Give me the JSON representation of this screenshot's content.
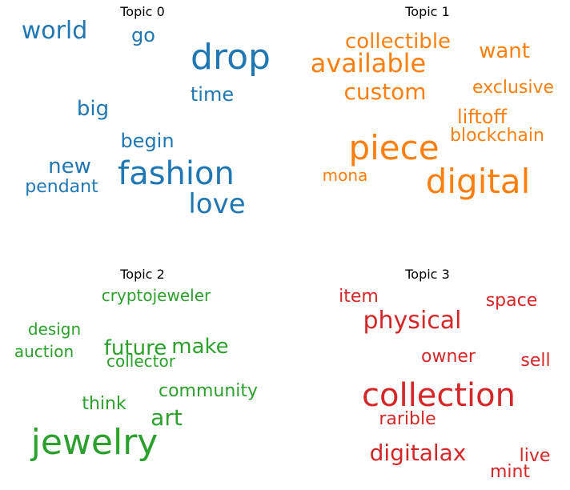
{
  "chart_data": [
    {
      "type": "wordcloud",
      "title": "Topic 0",
      "color": "#1f77b4",
      "words": [
        {
          "text": "drop",
          "weight": 1.0
        },
        {
          "text": "fashion",
          "weight": 0.92
        },
        {
          "text": "love",
          "weight": 0.82
        },
        {
          "text": "world",
          "weight": 0.72
        },
        {
          "text": "big",
          "weight": 0.64
        },
        {
          "text": "new",
          "weight": 0.62
        },
        {
          "text": "go",
          "weight": 0.58
        },
        {
          "text": "time",
          "weight": 0.58
        },
        {
          "text": "begin",
          "weight": 0.58
        },
        {
          "text": "pendant",
          "weight": 0.54
        }
      ]
    },
    {
      "type": "wordcloud",
      "title": "Topic 1",
      "color": "#ff7f0e",
      "words": [
        {
          "text": "digital",
          "weight": 1.0
        },
        {
          "text": "piece",
          "weight": 1.0
        },
        {
          "text": "available",
          "weight": 0.8
        },
        {
          "text": "custom",
          "weight": 0.68
        },
        {
          "text": "collectible",
          "weight": 0.64
        },
        {
          "text": "want",
          "weight": 0.64
        },
        {
          "text": "liftoff",
          "weight": 0.58
        },
        {
          "text": "exclusive",
          "weight": 0.54
        },
        {
          "text": "blockchain",
          "weight": 0.54
        },
        {
          "text": "mona",
          "weight": 0.5
        }
      ]
    },
    {
      "type": "wordcloud",
      "title": "Topic 2",
      "color": "#2ca02c",
      "words": [
        {
          "text": "jewelry",
          "weight": 1.0
        },
        {
          "text": "art",
          "weight": 0.68
        },
        {
          "text": "future",
          "weight": 0.62
        },
        {
          "text": "make",
          "weight": 0.62
        },
        {
          "text": "community",
          "weight": 0.56
        },
        {
          "text": "think",
          "weight": 0.56
        },
        {
          "text": "design",
          "weight": 0.52
        },
        {
          "text": "auction",
          "weight": 0.52
        },
        {
          "text": "collector",
          "weight": 0.52
        },
        {
          "text": "cryptojeweler",
          "weight": 0.5
        }
      ]
    },
    {
      "type": "wordcloud",
      "title": "Topic 3",
      "color": "#d62728",
      "words": [
        {
          "text": "collection",
          "weight": 1.0
        },
        {
          "text": "physical",
          "weight": 0.74
        },
        {
          "text": "digitalax",
          "weight": 0.72
        },
        {
          "text": "space",
          "weight": 0.56
        },
        {
          "text": "sell",
          "weight": 0.56
        },
        {
          "text": "item",
          "weight": 0.54
        },
        {
          "text": "owner",
          "weight": 0.54
        },
        {
          "text": "rarible",
          "weight": 0.54
        },
        {
          "text": "live",
          "weight": 0.54
        },
        {
          "text": "mint",
          "weight": 0.54
        }
      ]
    }
  ]
}
